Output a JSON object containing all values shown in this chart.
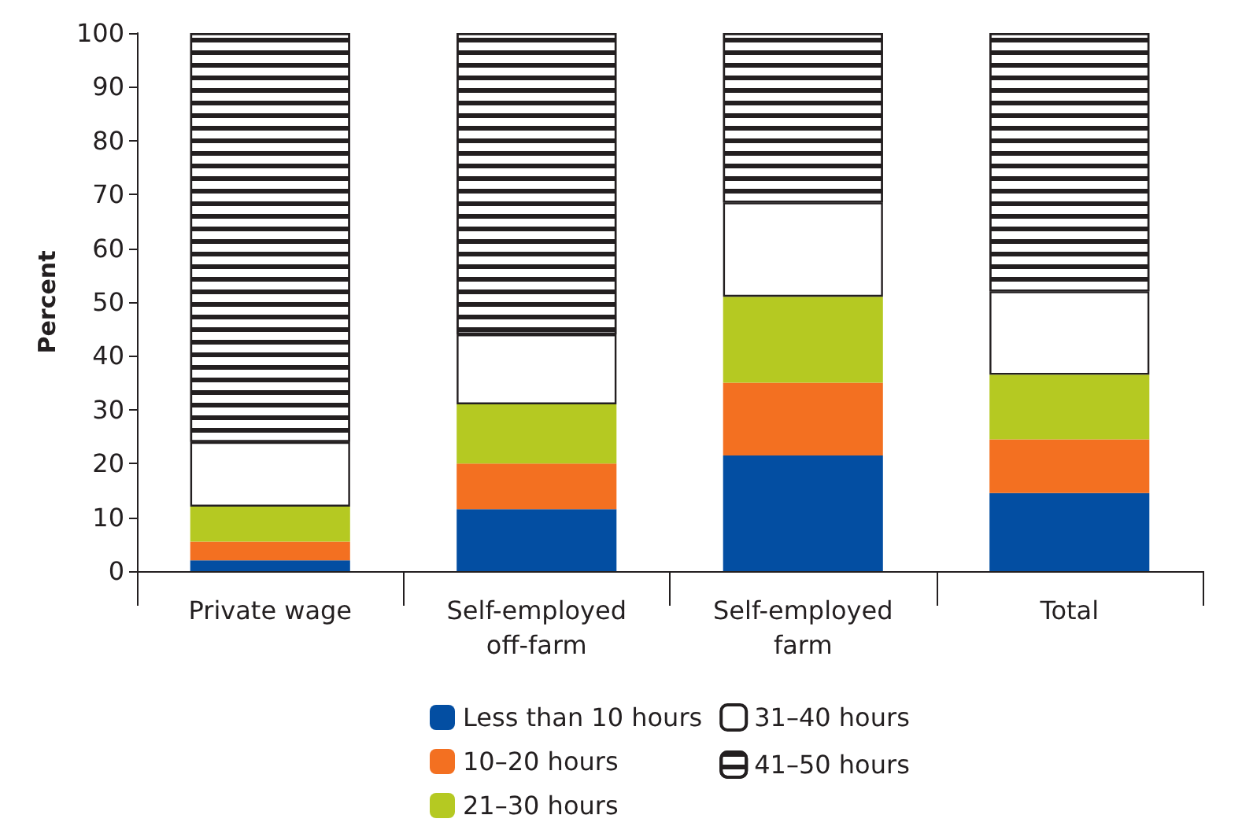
{
  "chart_data": {
    "type": "bar",
    "stacked": true,
    "ylabel": "Percent",
    "categories": [
      "Private wage",
      "Self-employed\noff-farm",
      "Self-employed\nfarm",
      "Total"
    ],
    "ylim": [
      0,
      100
    ],
    "yticks": [
      0,
      10,
      20,
      30,
      40,
      50,
      60,
      70,
      80,
      90,
      100
    ],
    "grid": false,
    "legend": "bottom",
    "series": [
      {
        "name": "Less than 10 hours",
        "color": "#034ea2",
        "values": [
          2,
          11.5,
          21.5,
          14.5
        ]
      },
      {
        "name": "10–20 hours",
        "color": "#f37021",
        "values": [
          3.5,
          8.5,
          13.5,
          10
        ]
      },
      {
        "name": "21–30 hours",
        "color": "#b5c922",
        "values": [
          6.5,
          11,
          16,
          12
        ]
      },
      {
        "name": "31–40 hours",
        "color": "#ffffff",
        "values": [
          12,
          13,
          17.5,
          15.5
        ]
      },
      {
        "name": "41–50 hours",
        "color": "#ffffff",
        "values": [
          76,
          56,
          31.5,
          48
        ]
      }
    ]
  }
}
